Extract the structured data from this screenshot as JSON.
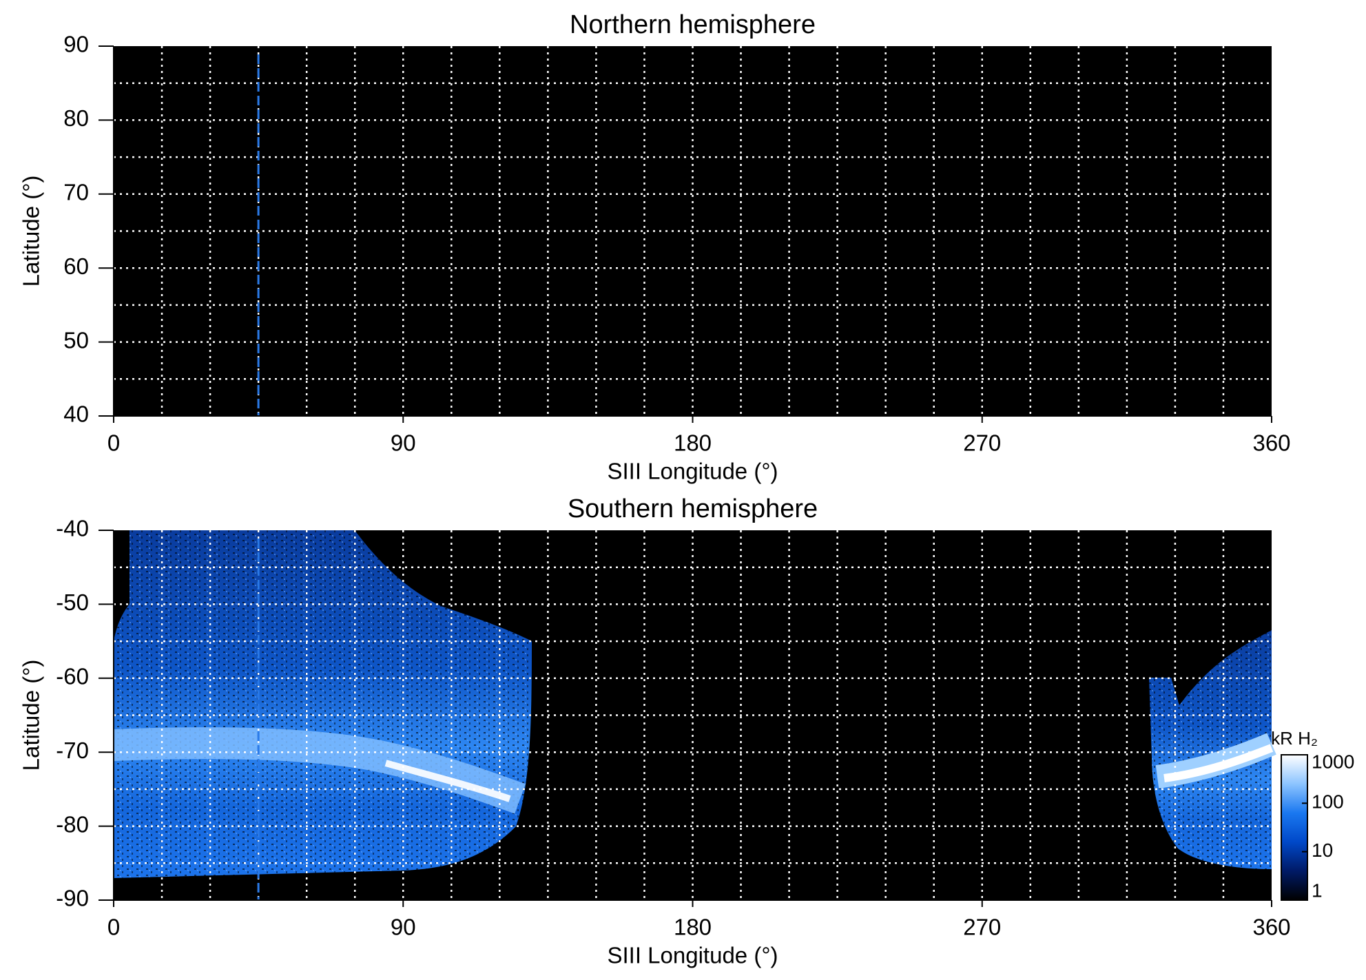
{
  "chart_data": [
    {
      "type": "heatmap",
      "title": "Northern hemisphere",
      "xlabel": "SIII Longitude (°)",
      "ylabel": "Latitude (°)",
      "xlim": [
        0,
        360
      ],
      "ylim": [
        40,
        90
      ],
      "xticks": [
        0,
        90,
        180,
        270,
        360
      ],
      "yticks": [
        40,
        50,
        60,
        70,
        80,
        90
      ],
      "xgrid": [
        15,
        30,
        45,
        60,
        75,
        90,
        105,
        120,
        135,
        150,
        165,
        180,
        195,
        210,
        225,
        240,
        255,
        270,
        285,
        300,
        315,
        330,
        345
      ],
      "ygrid": [
        45,
        50,
        55,
        60,
        65,
        70,
        75,
        80,
        85
      ],
      "grid_color": "#ffffff",
      "background": "#000000",
      "reference_longitude": 45,
      "reference_color": "#2a7ae8"
    },
    {
      "type": "heatmap",
      "title": "Southern hemisphere",
      "xlabel": "SIII Longitude (°)",
      "ylabel": "Latitude (°)",
      "xlim": [
        0,
        360
      ],
      "ylim": [
        -90,
        -40
      ],
      "xticks": [
        0,
        90,
        180,
        270,
        360
      ],
      "yticks": [
        -90,
        -80,
        -70,
        -60,
        -50,
        -40
      ],
      "xgrid": [
        15,
        30,
        45,
        60,
        75,
        90,
        105,
        120,
        135,
        150,
        165,
        180,
        195,
        210,
        225,
        240,
        255,
        270,
        285,
        300,
        315,
        330,
        345
      ],
      "ygrid": [
        -85,
        -80,
        -75,
        -70,
        -65,
        -60,
        -55,
        -50,
        -45
      ],
      "grid_color": "#ffffff",
      "background": "#000000",
      "reference_longitude": 45,
      "reference_color": "#2a7ae8",
      "colorbar": {
        "label": "kR H₂",
        "scale": "log",
        "lim": [
          1,
          1000
        ],
        "ticks": [
          1,
          10,
          100,
          1000
        ],
        "colors": [
          "#000000",
          "#001a66",
          "#0048c8",
          "#1a78f0",
          "#8cc4ff",
          "#ffffff"
        ]
      }
    }
  ]
}
